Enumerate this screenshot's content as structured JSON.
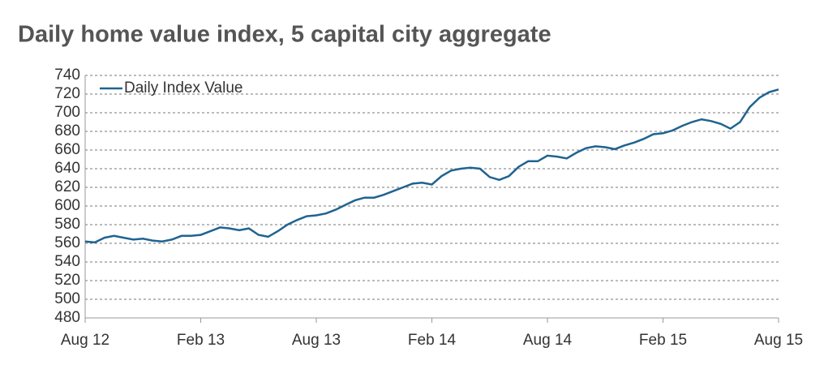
{
  "chart_data": {
    "type": "line",
    "title": "Daily home value index, 5 capital city aggregate",
    "categories": [
      "Aug 12",
      null,
      null,
      null,
      null,
      null,
      null,
      null,
      null,
      null,
      null,
      null,
      "Feb 13",
      null,
      null,
      null,
      null,
      null,
      null,
      null,
      null,
      null,
      null,
      null,
      "Aug 13",
      null,
      null,
      null,
      null,
      null,
      null,
      null,
      null,
      null,
      null,
      null,
      "Feb 14",
      null,
      null,
      null,
      null,
      null,
      null,
      null,
      null,
      null,
      null,
      null,
      "Aug 14",
      null,
      null,
      null,
      null,
      null,
      null,
      null,
      null,
      null,
      null,
      null,
      "Feb 15",
      null,
      null,
      null,
      null,
      null,
      null,
      null,
      null,
      null,
      null,
      null,
      "Aug 15"
    ],
    "series": [
      {
        "name": "Daily Index Value",
        "color": "#1f6391",
        "values": [
          562,
          561,
          566,
          568,
          566,
          564,
          565,
          563,
          562,
          564,
          568,
          568,
          569,
          573,
          577,
          576,
          574,
          576,
          569,
          567,
          573,
          580,
          585,
          589,
          590,
          592,
          596,
          601,
          606,
          609,
          609,
          612,
          616,
          620,
          624,
          625,
          623,
          632,
          638,
          640,
          641,
          640,
          631,
          628,
          632,
          642,
          648,
          648,
          654,
          653,
          651,
          657,
          662,
          664,
          663,
          661,
          665,
          668,
          672,
          677,
          678,
          681,
          686,
          690,
          693,
          691,
          688,
          683,
          690,
          706,
          716,
          722,
          725
        ]
      }
    ],
    "ylim": [
      480,
      740
    ],
    "yticks": [
      480,
      500,
      520,
      540,
      560,
      580,
      600,
      620,
      640,
      660,
      680,
      700,
      720,
      740
    ],
    "grid": true,
    "legend": "top-left"
  }
}
